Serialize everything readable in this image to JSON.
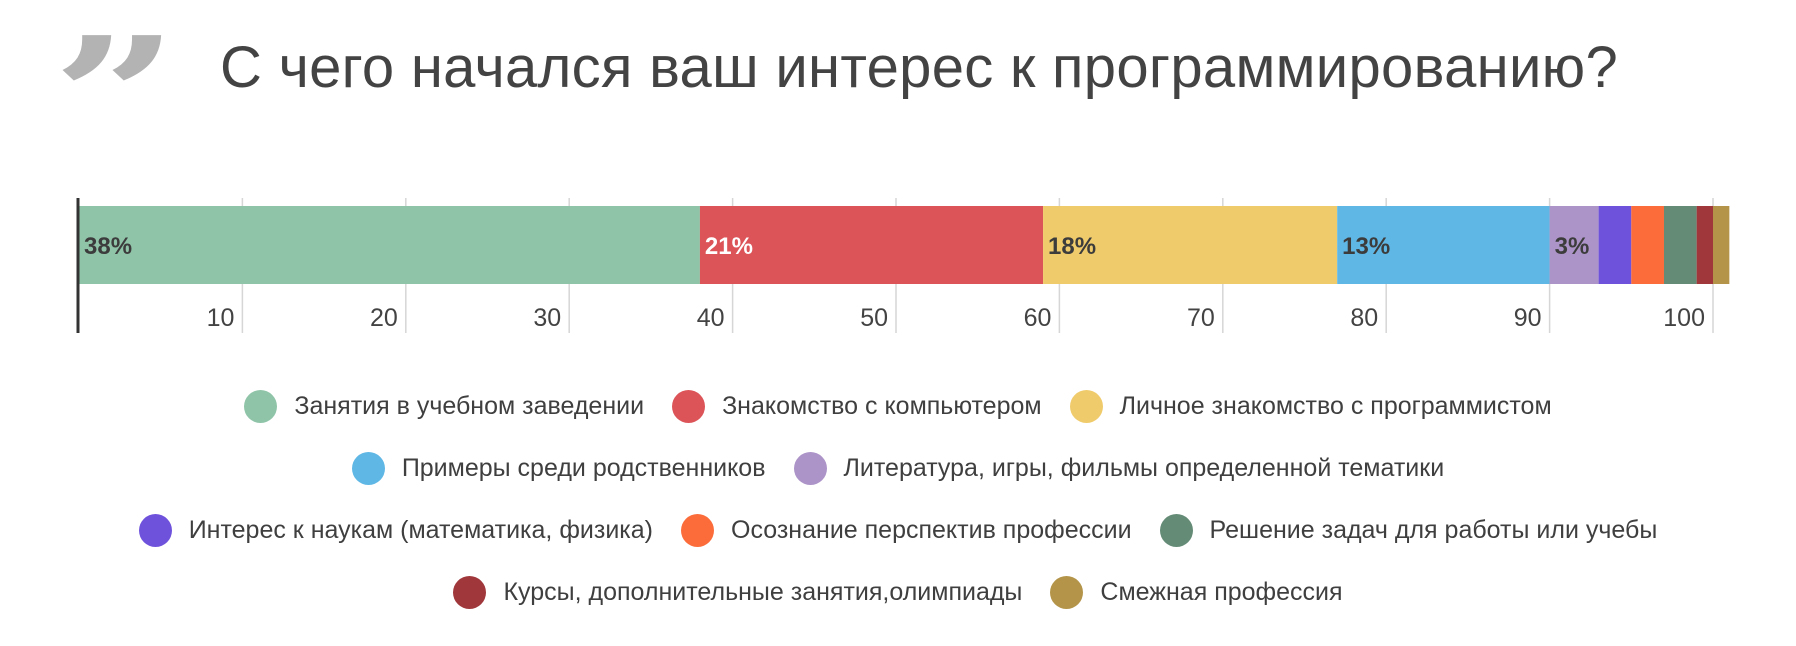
{
  "header": {
    "quote_icon": "closing-quote-icon",
    "quote_glyph": "”",
    "title": "С чего начался ваш интерес к программированию?"
  },
  "chart_data": {
    "type": "bar",
    "orientation": "horizontal",
    "stacked": true,
    "title": "С чего начался ваш интерес к программированию?",
    "categories": [
      ""
    ],
    "xlim": [
      0,
      100
    ],
    "x_ticks": [
      10,
      20,
      30,
      40,
      50,
      60,
      70,
      80,
      90,
      100
    ],
    "grid": true,
    "legend_position": "bottom",
    "series": [
      {
        "name": "Занятия в учебном заведении",
        "values": [
          38
        ],
        "color": "#8fc4a8",
        "label": "38%",
        "label_color": "#3c3c3c"
      },
      {
        "name": "Знакомство с компьютером",
        "values": [
          21
        ],
        "color": "#dc5458",
        "label": "21%",
        "label_color": "#ffffff"
      },
      {
        "name": "Личное знакомство с программистом",
        "values": [
          18
        ],
        "color": "#f0cb6b",
        "label": "18%",
        "label_color": "#3c3c3c"
      },
      {
        "name": "Примеры среди родственников",
        "values": [
          13
        ],
        "color": "#5eb7e5",
        "label": "13%",
        "label_color": "#3c3c3c"
      },
      {
        "name": "Литература, игры, фильмы определенной тематики",
        "values": [
          3
        ],
        "color": "#ac93c8",
        "label": "3%",
        "label_color": "#3c3c3c"
      },
      {
        "name": "Интерес к наукам (математика, физика)",
        "values": [
          2
        ],
        "color": "#6f52dc",
        "label": "",
        "label_color": "#3c3c3c"
      },
      {
        "name": "Осознание перспектив профессии",
        "values": [
          2
        ],
        "color": "#fb6c3a",
        "label": "",
        "label_color": "#3c3c3c"
      },
      {
        "name": "Решение задач для работы или учебы",
        "values": [
          2
        ],
        "color": "#648b76",
        "label": "",
        "label_color": "#3c3c3c"
      },
      {
        "name": "Курсы, дополнительные занятия,олимпиады",
        "values": [
          1
        ],
        "color": "#a0373a",
        "label": "",
        "label_color": "#3c3c3c"
      },
      {
        "name": "Смежная профессия",
        "values": [
          1
        ],
        "color": "#b39448",
        "label": "",
        "label_color": "#3c3c3c"
      }
    ],
    "legend_rows": [
      [
        0,
        1,
        2
      ],
      [
        3,
        4
      ],
      [
        5,
        6,
        7
      ],
      [
        8,
        9
      ]
    ]
  }
}
